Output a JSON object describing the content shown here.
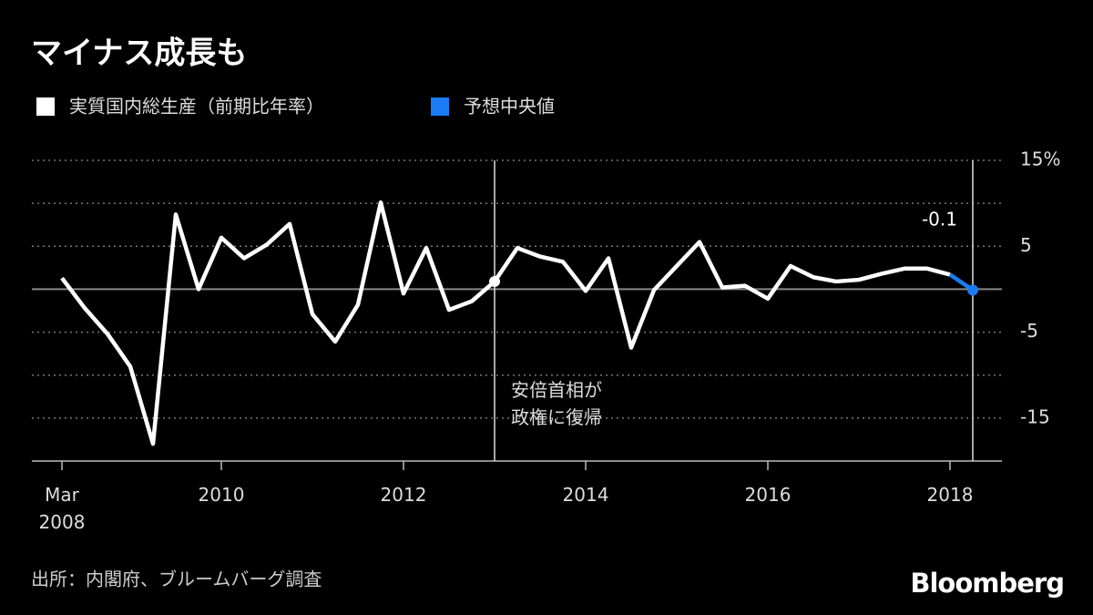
{
  "chart_data": {
    "type": "line",
    "title": "マイナス成長も",
    "source": "出所：内閣府、ブルームバーグ調査",
    "brand": "Bloomberg",
    "x": [
      2008.25,
      2008.5,
      2008.75,
      2009,
      2009.25,
      2009.5,
      2009.75,
      2010,
      2010.25,
      2010.5,
      2010.75,
      2011,
      2011.25,
      2011.5,
      2011.75,
      2012,
      2012.25,
      2012.5,
      2012.75,
      2013,
      2013.25,
      2013.5,
      2013.75,
      2014,
      2014.25,
      2014.5,
      2014.75,
      2015,
      2015.25,
      2015.5,
      2015.75,
      2016,
      2016.25,
      2016.5,
      2016.75,
      2017,
      2017.25,
      2017.5,
      2017.75,
      2018,
      2018.25
    ],
    "series": [
      {
        "name": "実質国内総生産（前期比年率）",
        "color": "#ffffff",
        "values": [
          1.3,
          -2.2,
          -5.2,
          -9.0,
          -18.0,
          8.7,
          0.0,
          6.0,
          3.6,
          5.2,
          7.6,
          -2.9,
          -6.1,
          -1.8,
          10.1,
          -0.5,
          4.8,
          -2.4,
          -1.4,
          0.9,
          4.8,
          3.8,
          3.2,
          -0.2,
          3.6,
          -6.8,
          -0.1,
          2.7,
          5.5,
          0.2,
          0.4,
          -1.1,
          2.7,
          1.4,
          0.9,
          1.1,
          1.8,
          2.4,
          2.4,
          1.7,
          null
        ]
      },
      {
        "name": "予想中央値",
        "color": "#1a7cf5",
        "values": [
          null,
          null,
          null,
          null,
          null,
          null,
          null,
          null,
          null,
          null,
          null,
          null,
          null,
          null,
          null,
          null,
          null,
          null,
          null,
          null,
          null,
          null,
          null,
          null,
          null,
          null,
          null,
          null,
          null,
          null,
          null,
          null,
          null,
          null,
          null,
          null,
          null,
          null,
          null,
          1.7,
          -0.1
        ]
      }
    ],
    "xlim": [
      2007.92,
      2018.57
    ],
    "xticks": [
      {
        "value": 2008.25,
        "label": "Mar\n2008"
      },
      2010,
      2012,
      2014,
      2016,
      2018
    ],
    "ylim": [
      -20,
      15
    ],
    "yticks": [
      -15,
      {
        "value": -10,
        "label": null
      },
      -5,
      {
        "value": 0,
        "label": null
      },
      5,
      {
        "value": 10,
        "label": null
      },
      {
        "value": 15,
        "label": "15%"
      }
    ],
    "grid": true,
    "reference_lines": [
      2013,
      2018.25
    ],
    "annotations": [
      {
        "x": 2013,
        "text": "安倍首相が\n政権に復帰"
      }
    ]
  }
}
